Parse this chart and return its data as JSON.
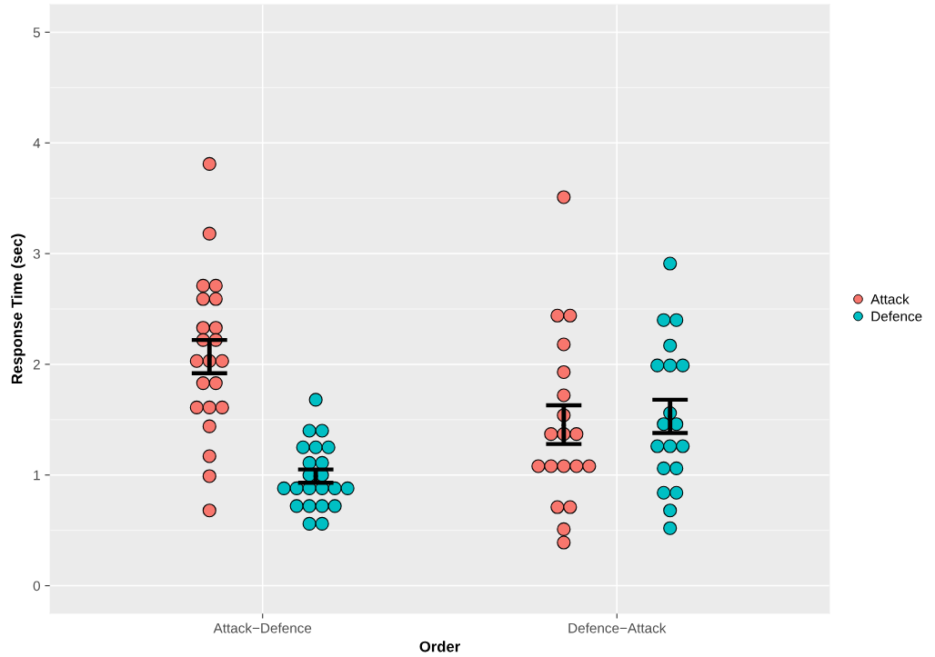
{
  "chart_data": {
    "type": "scatter",
    "xlabel": "Order",
    "ylabel": "Response Time (sec)",
    "categories": [
      "Attack−Defence",
      "Defence−Attack"
    ],
    "series": [
      {
        "name": "Attack",
        "color": "#f8766d",
        "x": [
          "Attack−Defence",
          "Attack−Defence",
          "Attack−Defence",
          "Attack−Defence",
          "Attack−Defence",
          "Attack−Defence",
          "Attack−Defence",
          "Attack−Defence",
          "Attack−Defence",
          "Attack−Defence",
          "Attack−Defence",
          "Attack−Defence",
          "Attack−Defence",
          "Attack−Defence",
          "Attack−Defence",
          "Attack−Defence",
          "Attack−Defence",
          "Attack−Defence",
          "Attack−Defence",
          "Attack−Defence",
          "Attack−Defence",
          "Attack−Defence",
          "Defence−Attack",
          "Defence−Attack",
          "Defence−Attack",
          "Defence−Attack",
          "Defence−Attack",
          "Defence−Attack",
          "Defence−Attack",
          "Defence−Attack",
          "Defence−Attack",
          "Defence−Attack",
          "Defence−Attack",
          "Defence−Attack",
          "Defence−Attack",
          "Defence−Attack",
          "Defence−Attack",
          "Defence−Attack",
          "Defence−Attack",
          "Defence−Attack",
          "Defence−Attack"
        ],
        "values": [
          3.81,
          3.18,
          2.71,
          2.71,
          2.59,
          2.59,
          2.33,
          2.33,
          2.22,
          2.22,
          2.03,
          2.03,
          2.03,
          1.83,
          1.83,
          1.61,
          1.61,
          1.61,
          1.44,
          1.17,
          0.99,
          0.68,
          3.51,
          2.44,
          2.44,
          2.18,
          1.93,
          1.72,
          1.54,
          1.37,
          1.37,
          1.37,
          1.08,
          1.08,
          1.08,
          1.08,
          1.08,
          0.71,
          0.71,
          0.51,
          0.39
        ]
      },
      {
        "name": "Defence",
        "color": "#00bfc4",
        "x": [
          "Attack−Defence",
          "Attack−Defence",
          "Attack−Defence",
          "Attack−Defence",
          "Attack−Defence",
          "Attack−Defence",
          "Attack−Defence",
          "Attack−Defence",
          "Attack−Defence",
          "Attack−Defence",
          "Attack−Defence",
          "Attack−Defence",
          "Attack−Defence",
          "Attack−Defence",
          "Attack−Defence",
          "Attack−Defence",
          "Attack−Defence",
          "Attack−Defence",
          "Attack−Defence",
          "Attack−Defence",
          "Attack−Defence",
          "Attack−Defence",
          "Defence−Attack",
          "Defence−Attack",
          "Defence−Attack",
          "Defence−Attack",
          "Defence−Attack",
          "Defence−Attack",
          "Defence−Attack",
          "Defence−Attack",
          "Defence−Attack",
          "Defence−Attack",
          "Defence−Attack",
          "Defence−Attack",
          "Defence−Attack",
          "Defence−Attack",
          "Defence−Attack",
          "Defence−Attack",
          "Defence−Attack",
          "Defence−Attack",
          "Defence−Attack"
        ],
        "values": [
          1.68,
          1.4,
          1.4,
          1.25,
          1.25,
          1.25,
          1.11,
          1.11,
          1.0,
          1.0,
          0.88,
          0.88,
          0.88,
          0.88,
          0.88,
          0.88,
          0.72,
          0.72,
          0.72,
          0.72,
          0.56,
          0.56,
          2.91,
          2.4,
          2.4,
          2.17,
          1.99,
          1.99,
          1.99,
          1.56,
          1.46,
          1.46,
          1.26,
          1.26,
          1.26,
          1.06,
          1.06,
          0.84,
          0.84,
          0.68,
          0.52
        ]
      },
      {
        "color": "#000000",
        "x": [
          "Attack−Defence",
          "Defence−Attack"
        ],
        "values": [
          2.07,
          1.45
        ],
        "errors": [
          [
            1.92,
            2.22
          ],
          [
            1.28,
            1.63
          ]
        ]
      },
      {
        "color": "#000000",
        "x": [
          "Attack−Defence",
          "Defence−Attack"
        ],
        "values": [
          0.99,
          1.53
        ],
        "errors": [
          [
            0.93,
            1.05
          ],
          [
            1.38,
            1.68
          ]
        ]
      }
    ],
    "ylim": [
      -0.25,
      5.25
    ],
    "yticks": [
      0,
      1,
      2,
      3,
      4,
      5
    ],
    "grid": true,
    "legend": "right",
    "marker": "circle"
  }
}
